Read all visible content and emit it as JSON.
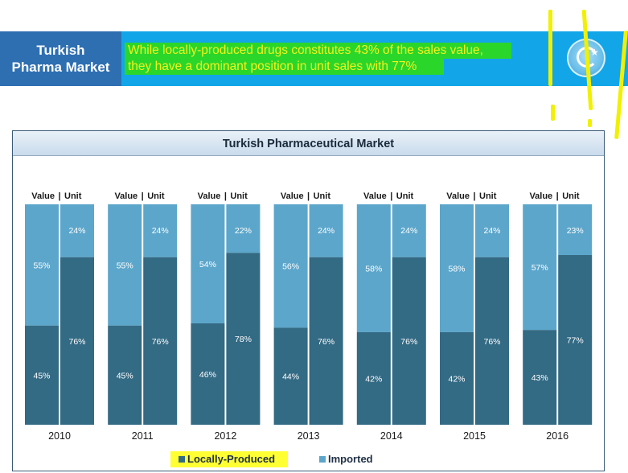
{
  "banner": {
    "title_line1": "Turkish",
    "title_line2": "Pharma Market",
    "text_line1": "While locally-produced drugs constitutes 43% of the sales value,",
    "text_line2": "they have a dominant position in unit sales with 77%"
  },
  "colors": {
    "local": "#336a84",
    "imported": "#5ca6cb",
    "banner_left": "#2e6fb2",
    "banner_right": "#12a6e8",
    "highlight_green": "#2bd62b",
    "highlight_yellow": "#ffff33"
  },
  "legend": {
    "local_label": "Locally-Produced",
    "imported_label": "Imported"
  },
  "chart_data": {
    "type": "bar",
    "stacked": true,
    "percent": true,
    "title": "Turkish Pharmaceutical Market",
    "categories": [
      "2010",
      "2011",
      "2012",
      "2013",
      "2014",
      "2015",
      "2016"
    ],
    "sub_labels": [
      "Value",
      "Unit"
    ],
    "separator": "|",
    "series": [
      {
        "name": "Locally-Produced",
        "value": [
          45,
          45,
          46,
          44,
          42,
          42,
          43
        ],
        "unit": [
          76,
          76,
          78,
          76,
          76,
          76,
          77
        ]
      },
      {
        "name": "Imported",
        "value": [
          55,
          55,
          54,
          56,
          58,
          58,
          57
        ],
        "unit": [
          24,
          24,
          22,
          24,
          24,
          24,
          23
        ]
      }
    ],
    "ylim": [
      0,
      100
    ],
    "legend": "bottom-center"
  }
}
